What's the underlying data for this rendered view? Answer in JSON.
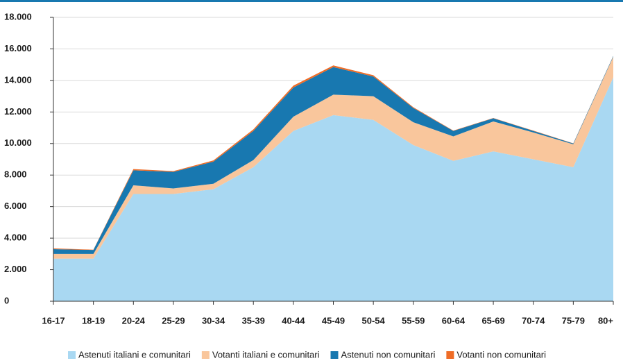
{
  "chart_data": {
    "type": "stacked-area",
    "categories": [
      "16-17",
      "18-19",
      "20-24",
      "25-29",
      "30-34",
      "35-39",
      "40-44",
      "45-49",
      "50-54",
      "55-59",
      "60-64",
      "65-69",
      "70-74",
      "75-79",
      "80+"
    ],
    "series": [
      {
        "name": "Astenuti italiani e comunitari",
        "color": "#a9d8f2",
        "values": [
          2700,
          2700,
          6800,
          6800,
          7100,
          8500,
          10800,
          11800,
          11500,
          9900,
          8900,
          9500,
          9000,
          8500,
          14200
        ]
      },
      {
        "name": "Votanti italiani e comunitari",
        "color": "#f9c69c",
        "values": [
          300,
          300,
          550,
          350,
          350,
          450,
          900,
          1300,
          1500,
          1450,
          1550,
          1900,
          1700,
          1450,
          1300
        ]
      },
      {
        "name": "Astenuti non comunitari",
        "color": "#1878b0",
        "values": [
          300,
          250,
          950,
          1050,
          1400,
          1850,
          1850,
          1750,
          1250,
          900,
          350,
          200,
          100,
          50,
          50
        ]
      },
      {
        "name": "Votanti non comunitari",
        "color": "#ef6c26",
        "values": [
          50,
          20,
          80,
          50,
          80,
          100,
          120,
          100,
          80,
          50,
          20,
          20,
          20,
          10,
          10
        ]
      }
    ],
    "ylim": [
      0,
      18000
    ],
    "yticks": [
      0,
      {
        "value": 2000,
        "label": "2.000"
      },
      {
        "value": 4000,
        "label": "4.000"
      },
      {
        "value": 6000,
        "label": "6.000"
      },
      {
        "value": 8000,
        "label": "8.000"
      },
      {
        "value": 10000,
        "label": "10.000"
      },
      {
        "value": 12000,
        "label": "12.000"
      },
      {
        "value": 14000,
        "label": "14.000"
      },
      {
        "value": 16000,
        "label": "16.000"
      },
      {
        "value": 18000,
        "label": "18.000"
      }
    ],
    "grid": true
  }
}
